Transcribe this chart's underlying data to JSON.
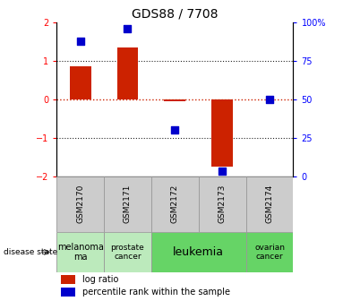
{
  "title": "GDS88 / 7708",
  "samples": [
    "GSM2170",
    "GSM2171",
    "GSM2172",
    "GSM2173",
    "GSM2174"
  ],
  "log_ratios": [
    0.85,
    1.35,
    -0.05,
    -1.75,
    0.0
  ],
  "percentile_ranks": [
    88,
    96,
    30,
    3,
    50
  ],
  "disease_states": [
    {
      "label": "melanoma\nma",
      "span": [
        0,
        0
      ],
      "color": "#b8e8b8"
    },
    {
      "label": "prostate\ncancer",
      "span": [
        1,
        1
      ],
      "color": "#b8e8b8"
    },
    {
      "label": "leukemia",
      "span": [
        2,
        3
      ],
      "color": "#66cc66"
    },
    {
      "label": "ovarian\ncancer",
      "span": [
        4,
        4
      ],
      "color": "#66cc66"
    }
  ],
  "ylim": [
    -2,
    2
  ],
  "yticks_left": [
    -2,
    -1,
    0,
    1,
    2
  ],
  "yticks_right": [
    0,
    25,
    50,
    75,
    100
  ],
  "bar_color": "#cc2200",
  "dot_color": "#0000cc",
  "grid_color": "#333333",
  "zero_line_color": "#cc2200",
  "label_box_color": "#cccccc",
  "background_color": "#ffffff",
  "bar_width": 0.45,
  "dot_size": 35,
  "figwidth": 3.83,
  "figheight": 3.36,
  "dpi": 100
}
